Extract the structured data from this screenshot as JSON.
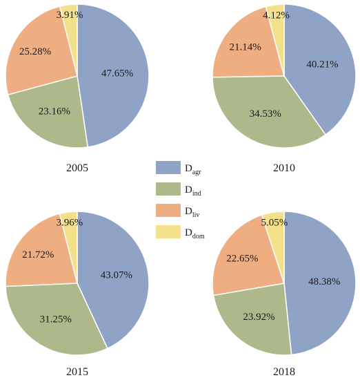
{
  "chart_data": [
    {
      "type": "pie",
      "title": "2005",
      "slices": [
        {
          "key": "agr",
          "value": 47.65,
          "label": "47.65%"
        },
        {
          "key": "ind",
          "value": 23.16,
          "label": "23.16%"
        },
        {
          "key": "liv",
          "value": 25.28,
          "label": "25.28%"
        },
        {
          "key": "dom",
          "value": 3.91,
          "label": "3.91%"
        }
      ]
    },
    {
      "type": "pie",
      "title": "2010",
      "slices": [
        {
          "key": "agr",
          "value": 40.21,
          "label": "40.21%"
        },
        {
          "key": "ind",
          "value": 34.53,
          "label": "34.53%"
        },
        {
          "key": "liv",
          "value": 21.14,
          "label": "21.14%"
        },
        {
          "key": "dom",
          "value": 4.12,
          "label": "4.12%"
        }
      ]
    },
    {
      "type": "pie",
      "title": "2015",
      "slices": [
        {
          "key": "agr",
          "value": 43.07,
          "label": "43.07%"
        },
        {
          "key": "ind",
          "value": 31.25,
          "label": "31.25%"
        },
        {
          "key": "liv",
          "value": 21.72,
          "label": "21.72%"
        },
        {
          "key": "dom",
          "value": 3.96,
          "label": "3.96%"
        }
      ]
    },
    {
      "type": "pie",
      "title": "2018",
      "slices": [
        {
          "key": "agr",
          "value": 48.38,
          "label": "48.38%"
        },
        {
          "key": "ind",
          "value": 23.92,
          "label": "23.92%"
        },
        {
          "key": "liv",
          "value": 22.65,
          "label": "22.65%"
        },
        {
          "key": "dom",
          "value": 5.05,
          "label": "5.05%"
        }
      ]
    }
  ],
  "legend": [
    {
      "key": "agr",
      "main": "D",
      "sub": "agr",
      "color": "#8fa3c6"
    },
    {
      "key": "ind",
      "main": "D",
      "sub": "ind",
      "color": "#adb98b"
    },
    {
      "key": "liv",
      "main": "D",
      "sub": "liv",
      "color": "#efad82"
    },
    {
      "key": "dom",
      "main": "D",
      "sub": "dom",
      "color": "#f2e08a"
    }
  ]
}
